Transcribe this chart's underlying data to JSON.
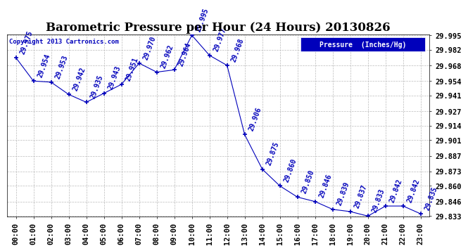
{
  "title": "Barometric Pressure per Hour (24 Hours) 20130826",
  "legend_label": "Pressure  (Inches/Hg)",
  "copyright": "Copyright 2013 Cartronics.com",
  "hours": [
    0,
    1,
    2,
    3,
    4,
    5,
    6,
    7,
    8,
    9,
    10,
    11,
    12,
    13,
    14,
    15,
    16,
    17,
    18,
    19,
    20,
    21,
    22,
    23
  ],
  "hour_labels": [
    "00:00",
    "01:00",
    "02:00",
    "03:00",
    "04:00",
    "05:00",
    "06:00",
    "07:00",
    "08:00",
    "09:00",
    "10:00",
    "11:00",
    "12:00",
    "13:00",
    "14:00",
    "15:00",
    "16:00",
    "17:00",
    "18:00",
    "19:00",
    "20:00",
    "21:00",
    "22:00",
    "23:00"
  ],
  "values": [
    29.975,
    29.954,
    29.953,
    29.942,
    29.935,
    29.943,
    29.951,
    29.97,
    29.962,
    29.964,
    29.995,
    29.977,
    29.968,
    29.906,
    29.875,
    29.86,
    29.85,
    29.846,
    29.839,
    29.837,
    29.833,
    29.842,
    29.842,
    29.835
  ],
  "ylim_min": 29.833,
  "ylim_max": 29.995,
  "yticks": [
    29.833,
    29.846,
    29.86,
    29.873,
    29.887,
    29.901,
    29.914,
    29.927,
    29.941,
    29.954,
    29.968,
    29.982,
    29.995
  ],
  "line_color": "#0000bb",
  "marker_color": "#0000bb",
  "bg_color": "#ffffff",
  "grid_color": "#bbbbbb",
  "label_color": "#0000bb",
  "title_color": "#000000",
  "legend_bg": "#0000bb",
  "legend_fg": "#ffffff",
  "annotation_rotation": 70,
  "annotation_fontsize": 7.0,
  "tick_fontsize": 7.5,
  "title_fontsize": 12
}
